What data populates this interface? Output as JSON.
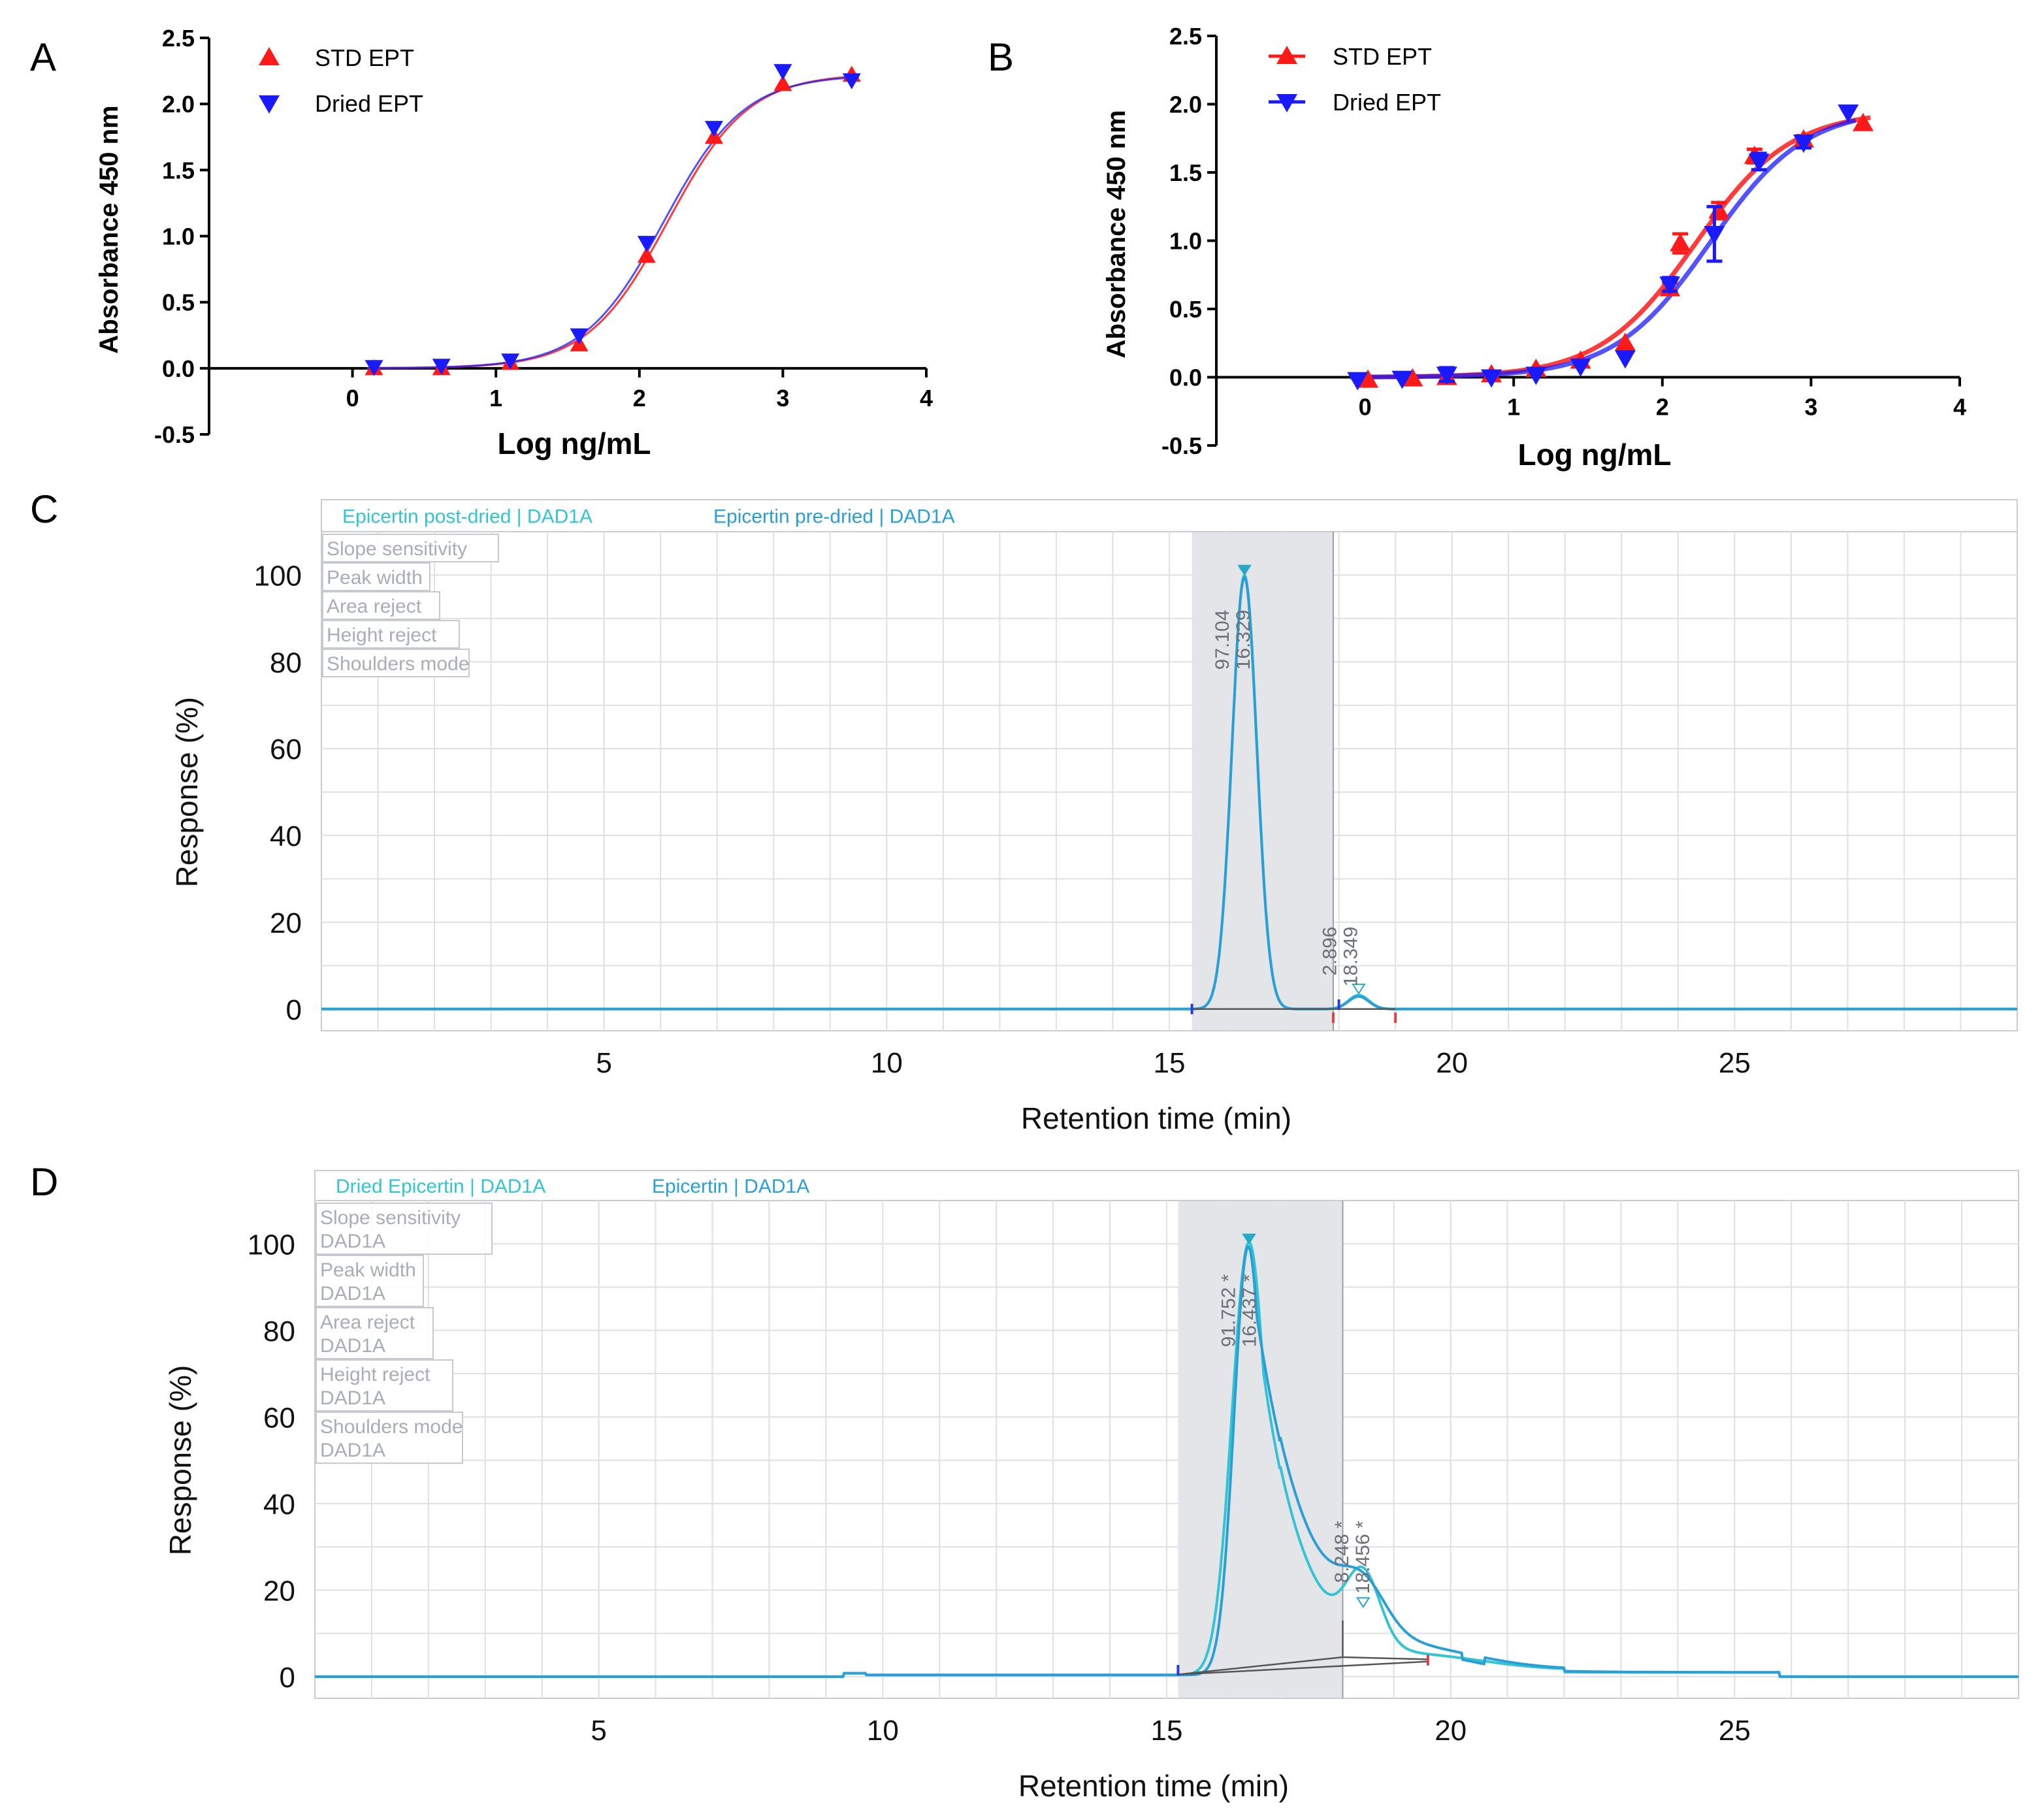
{
  "panels": {
    "A": {
      "letter": "A",
      "chart_data": {
        "type": "scatter",
        "title": "",
        "xlabel": "Log ng/mL",
        "ylabel": "Absorbance 450 nm",
        "xlim": [
          -1,
          4
        ],
        "ylim": [
          -0.5,
          2.5
        ],
        "xticks": [
          0,
          1,
          2,
          3,
          4
        ],
        "yticks": [
          -0.5,
          0.0,
          0.5,
          1.0,
          1.5,
          2.0,
          2.5
        ],
        "ytick_labels": [
          "-0.5",
          "0.0",
          "0.5",
          "1.0",
          "1.5",
          "2.0",
          "2.5"
        ],
        "legend_position": "top-left",
        "series": [
          {
            "name": "STD EPT",
            "color": "#ff1a1a",
            "marker": "triangle-up",
            "x": [
              0.15,
              0.62,
              1.1,
              1.58,
              2.05,
              2.52,
              3.0,
              3.48
            ],
            "y": [
              0.0,
              0.0,
              0.04,
              0.18,
              0.85,
              1.75,
              2.15,
              2.22
            ],
            "fit": {
              "bottom": 0.0,
              "top": 2.23,
              "logec50": 2.2,
              "hill": 1.55
            }
          },
          {
            "name": "Dried EPT",
            "color": "#1a1aff",
            "marker": "triangle-down",
            "x": [
              0.15,
              0.62,
              1.1,
              1.58,
              2.05,
              2.52,
              3.0,
              3.48
            ],
            "y": [
              0.01,
              0.02,
              0.06,
              0.25,
              0.95,
              1.82,
              2.25,
              2.18
            ],
            "fit": {
              "bottom": 0.0,
              "top": 2.22,
              "logec50": 2.17,
              "hill": 1.55
            }
          }
        ]
      }
    },
    "B": {
      "letter": "B",
      "chart_data": {
        "type": "scatter",
        "title": "",
        "xlabel": "Log ng/mL",
        "ylabel": "Absorbance 450 nm",
        "xlim": [
          -1,
          4
        ],
        "ylim": [
          -0.5,
          2.5
        ],
        "xticks": [
          0,
          1,
          2,
          3,
          4
        ],
        "yticks": [
          -0.5,
          0.0,
          0.5,
          1.0,
          1.5,
          2.0,
          2.5
        ],
        "ytick_labels": [
          "-0.5",
          "0.0",
          "0.5",
          "1.0",
          "1.5",
          "2.0",
          "2.5"
        ],
        "legend_position": "top-left",
        "series": [
          {
            "name": "STD EPT",
            "color": "#ff1a1a",
            "marker": "triangle-up",
            "x": [
              0.02,
              0.32,
              0.55,
              0.85,
              1.15,
              1.45,
              1.75,
              2.05,
              2.12,
              2.38,
              2.62,
              2.95,
              3.35
            ],
            "y": [
              -0.02,
              -0.01,
              0.0,
              0.02,
              0.06,
              0.12,
              0.25,
              0.65,
              0.98,
              1.22,
              1.62,
              1.74,
              1.86
            ],
            "err": [
              0,
              0,
              0,
              0,
              0,
              0,
              0,
              0.04,
              0.07,
              0.06,
              0.05,
              0.03,
              0
            ],
            "fit": {
              "bottom": 0.0,
              "top": 1.95,
              "logec50": 2.22,
              "hill": 1.35
            }
          },
          {
            "name": "Dried EPT",
            "color": "#1a1aff",
            "marker": "triangle-down",
            "x": [
              -0.05,
              0.25,
              0.55,
              0.85,
              1.15,
              1.45,
              1.75,
              2.05,
              2.35,
              2.65,
              2.95,
              3.25
            ],
            "y": [
              -0.02,
              -0.01,
              0.02,
              0.0,
              0.02,
              0.08,
              0.14,
              0.68,
              1.05,
              1.58,
              1.72,
              1.94
            ],
            "err": [
              0,
              0,
              0.05,
              0,
              0,
              0,
              0,
              0.05,
              0.2,
              0.06,
              0.04,
              0
            ],
            "fit": {
              "bottom": 0.0,
              "top": 1.97,
              "logec50": 2.32,
              "hill": 1.35
            }
          }
        ]
      }
    },
    "C": {
      "letter": "C",
      "chart_data": {
        "type": "line",
        "title": "",
        "xlabel": "Retention time (min)",
        "ylabel": "Response (%)",
        "xlim": [
          0,
          30
        ],
        "ylim": [
          -5,
          110
        ],
        "xticks": [
          5,
          10,
          15,
          20,
          25
        ],
        "yticks": [
          0,
          20,
          40,
          60,
          80,
          100
        ],
        "legend_position": "top-left",
        "series": [
          {
            "name": "Epicertin post-dried | DAD1A",
            "color": "#33c4d4",
            "peaks": [
              {
                "rt": 16.33,
                "height": 100,
                "width": 0.22
              },
              {
                "rt": 18.35,
                "height": 3.2,
                "width": 0.18
              }
            ]
          },
          {
            "name": "Epicertin pre-dried | DAD1A",
            "color": "#2a9fd6",
            "peaks": [
              {
                "rt": 16.329,
                "height": 99.5,
                "width": 0.22
              },
              {
                "rt": 18.349,
                "height": 2.9,
                "width": 0.18
              }
            ]
          }
        ],
        "integration_params": [
          "Slope sensitivity",
          "Peak width",
          "Area reject",
          "Height reject",
          "Shoulders mode"
        ],
        "shaded_window": [
          15.4,
          17.9
        ],
        "peak_annotations": [
          {
            "area": "97.104",
            "rt": "16.329"
          },
          {
            "area": "2.896",
            "rt": "18.349"
          }
        ]
      }
    },
    "D": {
      "letter": "D",
      "chart_data": {
        "type": "line",
        "title": "",
        "xlabel": "Retention time (min)",
        "ylabel": "Response (%)",
        "xlim": [
          0,
          30
        ],
        "ylim": [
          -5,
          110
        ],
        "xticks": [
          5,
          10,
          15,
          20,
          25
        ],
        "yticks": [
          0,
          20,
          40,
          60,
          80,
          100
        ],
        "legend_position": "top-left",
        "series": [
          {
            "name": "Dried Epicertin | DAD1A",
            "color": "#33c4d4",
            "peaks": [
              {
                "rt": 16.45,
                "height": 100,
                "width_left": 0.3,
                "width_right": 0.75
              },
              {
                "rt": 18.46,
                "height": 16,
                "width": 0.3
              }
            ]
          },
          {
            "name": "Epicertin | DAD1A",
            "color": "#2a9fd6",
            "peaks": [
              {
                "rt": 16.437,
                "height": 99,
                "width_left": 0.25,
                "width_right": 0.95
              },
              {
                "rt": 18.456,
                "height": 10,
                "width": 0.4
              }
            ]
          }
        ],
        "integration_params": [
          "Slope sensitivity",
          "Peak width",
          "Area reject",
          "Height reject",
          "Shoulders mode"
        ],
        "integration_params_suffix": "DAD1A",
        "shaded_window": [
          15.2,
          18.1
        ],
        "peak_annotations": [
          {
            "area": "91.752 *",
            "rt": "16.437 *"
          },
          {
            "area": "8.248 *",
            "rt": "18.456 *"
          }
        ]
      }
    }
  },
  "colors": {
    "std": "#ff1a1a",
    "dried": "#1a1aff",
    "teal_light": "#33c4d4",
    "teal_dark": "#2a9fd6",
    "shade": "#e3e5e8",
    "grid": "#dde0e5",
    "param_text": "#a9adb8"
  }
}
